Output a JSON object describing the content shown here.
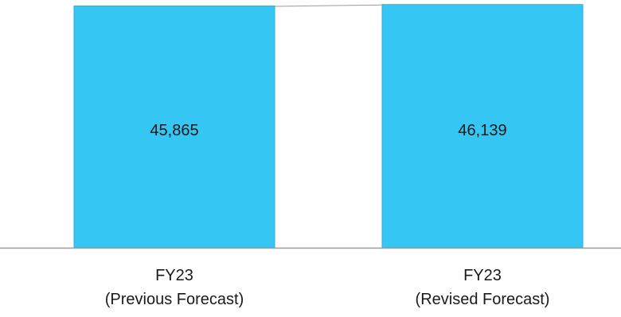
{
  "chart_data": {
    "type": "bar",
    "categories": [
      [
        "FY23",
        "(Previous Forecast)"
      ],
      [
        "FY23",
        "(Revised Forecast)"
      ]
    ],
    "values": [
      45865,
      46139
    ],
    "data_labels": [
      "45,865",
      "46,139"
    ],
    "title": "",
    "xlabel": "",
    "ylabel": "",
    "ylim": [
      0,
      47000
    ],
    "grid": false,
    "legend": "none",
    "colors": {
      "bar": "#35c6f4",
      "bar_edge": "#2ab0dd",
      "axis": "#9a9a9a",
      "connector": "#9a9a9a"
    }
  }
}
